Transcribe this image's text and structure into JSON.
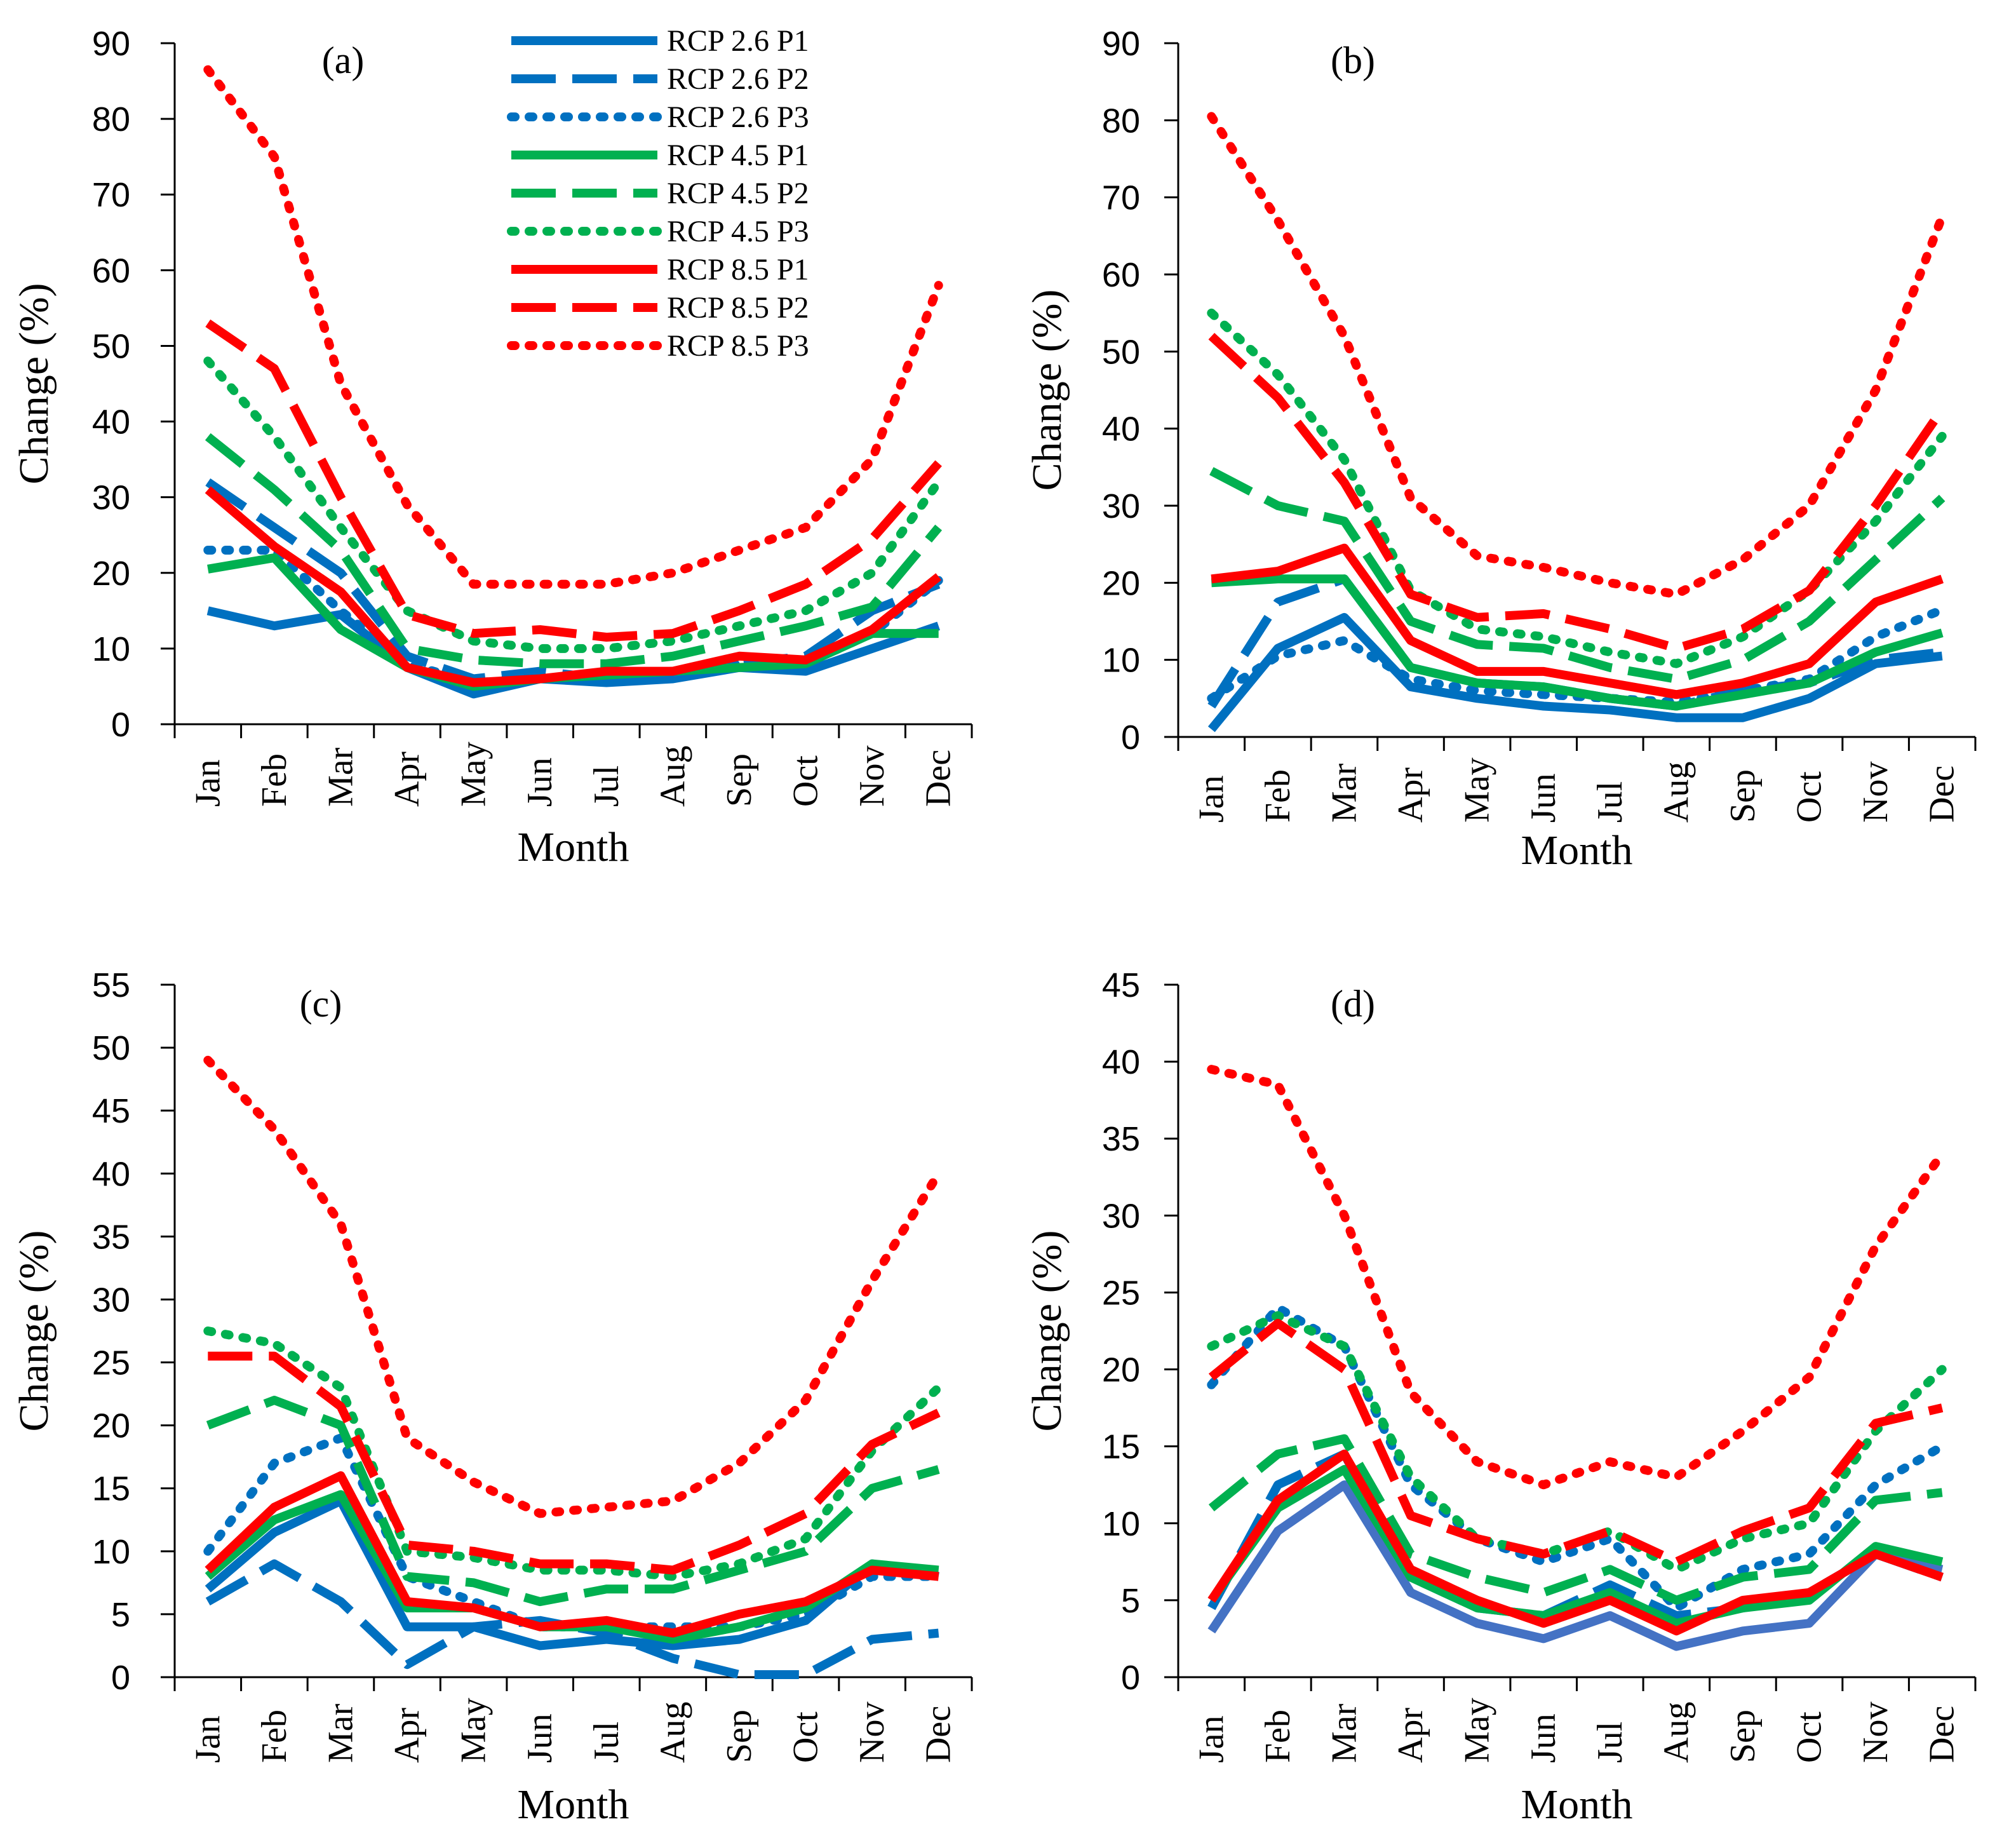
{
  "chart_data": [
    {
      "type": "line",
      "panel": "(a)",
      "xlabel": "Month",
      "ylabel": "Change (%)",
      "categories": [
        "Jan",
        "Feb",
        "Mar",
        "Apr",
        "May",
        "Jun",
        "Jul",
        "Aug",
        "Sep",
        "Oct",
        "Nov",
        "Dec"
      ],
      "ylim": [
        0,
        90
      ],
      "yticks": [
        0,
        10,
        20,
        30,
        40,
        50,
        60,
        70,
        80,
        90
      ],
      "legend": {
        "entries": [
          "RCP 2.6 P1",
          "RCP 2.6 P2",
          "RCP 2.6 P3",
          "RCP 4.5 P1",
          "RCP 4.5 P2",
          "RCP 4.5 P3",
          "RCP 8.5 P1",
          "RCP 8.5 P2",
          "RCP 8.5 P3"
        ],
        "placement": "top-center"
      },
      "series": [
        {
          "name": "RCP 2.6 P1",
          "color": "#0070c0",
          "style": "solid",
          "values": [
            15,
            13,
            14.5,
            7.5,
            4,
            6,
            5.5,
            6,
            7.5,
            7,
            10,
            13
          ]
        },
        {
          "name": "RCP 2.6 P2",
          "color": "#0070c0",
          "style": "dashed",
          "values": [
            32,
            26,
            20,
            9,
            6,
            7,
            6,
            6.5,
            8,
            9,
            15,
            18.5
          ]
        },
        {
          "name": "RCP 2.6 P3",
          "color": "#0070c0",
          "style": "dotted",
          "values": [
            23,
            23,
            15,
            8,
            5.5,
            6,
            6,
            7,
            8,
            8,
            12,
            19
          ]
        },
        {
          "name": "RCP 4.5 P1",
          "color": "#00b050",
          "style": "solid",
          "values": [
            20.5,
            22,
            12.5,
            7.5,
            5,
            6,
            6.5,
            7,
            7.5,
            8,
            12,
            12
          ]
        },
        {
          "name": "RCP 4.5 P2",
          "color": "#00b050",
          "style": "dashed",
          "values": [
            38,
            31,
            23,
            10,
            8.5,
            8,
            8,
            9,
            11,
            13,
            15.5,
            26
          ]
        },
        {
          "name": "RCP 4.5 P3",
          "color": "#00b050",
          "style": "dotted",
          "values": [
            48,
            38,
            26,
            15,
            11,
            10,
            10,
            11,
            13,
            15,
            20,
            32
          ]
        },
        {
          "name": "RCP 8.5 P1",
          "color": "#ff0000",
          "style": "solid",
          "values": [
            31,
            23.5,
            17.5,
            7.5,
            5.5,
            6,
            7,
            7,
            9,
            8.5,
            12.5,
            19.5
          ]
        },
        {
          "name": "RCP 8.5 P2",
          "color": "#ff0000",
          "style": "dashed",
          "values": [
            53,
            47,
            30,
            14.5,
            12,
            12.5,
            11.5,
            12,
            15,
            18.5,
            24.5,
            34.5
          ]
        },
        {
          "name": "RCP 8.5 P3",
          "color": "#ff0000",
          "style": "dotted",
          "values": [
            86.5,
            75,
            45,
            29,
            18.5,
            18.5,
            18.5,
            20,
            23,
            26,
            35,
            58
          ]
        }
      ]
    },
    {
      "type": "line",
      "panel": "(b)",
      "xlabel": "Month",
      "ylabel": "Change (%)",
      "categories": [
        "Jan",
        "Feb",
        "Mar",
        "Apr",
        "May",
        "Jun",
        "Jul",
        "Aug",
        "Sep",
        "Oct",
        "Nov",
        "Dec"
      ],
      "ylim": [
        0,
        90
      ],
      "yticks": [
        0,
        10,
        20,
        30,
        40,
        50,
        60,
        70,
        80,
        90
      ],
      "series": [
        {
          "name": "RCP 2.6 P1",
          "color": "#0070c0",
          "style": "solid",
          "values": [
            1,
            11.5,
            15.5,
            6.5,
            5,
            4,
            3.5,
            2.5,
            2.5,
            5,
            9.5,
            10.5
          ]
        },
        {
          "name": "RCP 2.6 P2",
          "color": "#0070c0",
          "style": "dashed",
          "values": [
            4,
            17.5,
            20.5,
            9,
            7,
            6.5,
            5,
            4,
            6,
            7,
            10,
            11
          ]
        },
        {
          "name": "RCP 2.6 P3",
          "color": "#0070c0",
          "style": "dotted",
          "values": [
            5,
            10.5,
            12.5,
            7.5,
            6,
            5.5,
            5,
            4.5,
            6,
            7.5,
            13,
            16.5
          ]
        },
        {
          "name": "RCP 4.5 P1",
          "color": "#00b050",
          "style": "solid",
          "values": [
            20,
            20.5,
            20.5,
            9,
            7,
            6.5,
            5,
            4,
            5.5,
            7,
            11,
            13.5
          ]
        },
        {
          "name": "RCP 4.5 P2",
          "color": "#00b050",
          "style": "dashed",
          "values": [
            34.5,
            30,
            28,
            15,
            12,
            11.5,
            9,
            7.5,
            10,
            15,
            23,
            31
          ]
        },
        {
          "name": "RCP 4.5 P3",
          "color": "#00b050",
          "style": "dotted",
          "values": [
            55,
            47,
            36,
            19,
            14,
            13,
            11,
            9.5,
            13,
            19,
            28,
            39
          ]
        },
        {
          "name": "RCP 8.5 P1",
          "color": "#ff0000",
          "style": "solid",
          "values": [
            20.5,
            21.5,
            24.5,
            12.5,
            8.5,
            8.5,
            7,
            5.5,
            7,
            9.5,
            17.5,
            20.5
          ]
        },
        {
          "name": "RCP 8.5 P2",
          "color": "#ff0000",
          "style": "dashed",
          "values": [
            52,
            44,
            33,
            18.5,
            15.5,
            16,
            14,
            11.5,
            14,
            19,
            30,
            42.5
          ]
        },
        {
          "name": "RCP 8.5 P3",
          "color": "#ff0000",
          "style": "dotted",
          "values": [
            80.5,
            67,
            52,
            31,
            23.5,
            22,
            20,
            18.5,
            23,
            30,
            45,
            67.5
          ]
        }
      ]
    },
    {
      "type": "line",
      "panel": "(c)",
      "xlabel": "Month",
      "ylabel": "Change (%)",
      "categories": [
        "Jan",
        "Feb",
        "Mar",
        "Apr",
        "May",
        "Jun",
        "Jul",
        "Aug",
        "Sep",
        "Oct",
        "Nov",
        "Dec"
      ],
      "ylim": [
        0,
        55
      ],
      "yticks": [
        0,
        5,
        10,
        15,
        20,
        25,
        30,
        35,
        40,
        45,
        50,
        55
      ],
      "series": [
        {
          "name": "RCP 2.6 P1",
          "color": "#0070c0",
          "style": "solid",
          "values": [
            7,
            11.5,
            14,
            4,
            4,
            2.5,
            3,
            2.5,
            3,
            4.5,
            9,
            8
          ]
        },
        {
          "name": "RCP 2.6 P2",
          "color": "#0070c0",
          "style": "dashed",
          "values": [
            6,
            9,
            6,
            1,
            4,
            4.5,
            3.5,
            1.5,
            0.2,
            0.2,
            3,
            3.5
          ]
        },
        {
          "name": "RCP 2.6 P3",
          "color": "#0070c0",
          "style": "dotted",
          "values": [
            10,
            17,
            19,
            8,
            6,
            4,
            4,
            4,
            4,
            5,
            8,
            8
          ]
        },
        {
          "name": "RCP 4.5 P1",
          "color": "#00b050",
          "style": "solid",
          "values": [
            8,
            12.5,
            14.5,
            5.5,
            5.5,
            4,
            4,
            3,
            4,
            5.5,
            9,
            8.5
          ]
        },
        {
          "name": "RCP 4.5 P2",
          "color": "#00b050",
          "style": "dashed",
          "values": [
            20,
            22,
            20,
            8,
            7.5,
            6,
            7,
            7,
            8.5,
            10,
            15,
            16.5
          ]
        },
        {
          "name": "RCP 4.5 P3",
          "color": "#00b050",
          "style": "dotted",
          "values": [
            27.5,
            26.5,
            23,
            10,
            9.5,
            8.5,
            8.5,
            8,
            9,
            11,
            18,
            23
          ]
        },
        {
          "name": "RCP 8.5 P1",
          "color": "#ff0000",
          "style": "solid",
          "values": [
            8.5,
            13.5,
            16,
            6,
            5.5,
            4,
            4.5,
            3.5,
            5,
            6,
            8.5,
            8
          ]
        },
        {
          "name": "RCP 8.5 P2",
          "color": "#ff0000",
          "style": "dashed",
          "values": [
            25.5,
            25.5,
            21.5,
            10.5,
            10,
            9,
            9,
            8.5,
            10.5,
            13,
            18.5,
            21
          ]
        },
        {
          "name": "RCP 8.5 P3",
          "color": "#ff0000",
          "style": "dotted",
          "values": [
            49,
            43.5,
            36,
            19,
            15.5,
            13,
            13.5,
            14,
            17,
            22,
            31.5,
            40
          ]
        }
      ]
    },
    {
      "type": "line",
      "panel": "(d)",
      "xlabel": "Month",
      "ylabel": "Change (%)",
      "categories": [
        "Jan",
        "Feb",
        "Mar",
        "Apr",
        "May",
        "Jun",
        "Jul",
        "Aug",
        "Sep",
        "Oct",
        "Nov",
        "Dec"
      ],
      "ylim": [
        0,
        45
      ],
      "yticks": [
        0,
        5,
        10,
        15,
        20,
        25,
        30,
        35,
        40,
        45
      ],
      "series": [
        {
          "name": "RCP 2.6 P1",
          "color": "#4472c4",
          "style": "solid",
          "values": [
            3,
            9.5,
            12.5,
            5.5,
            3.5,
            2.5,
            4,
            2,
            3,
            3.5,
            8,
            7
          ]
        },
        {
          "name": "RCP 2.6 P2",
          "color": "#0070c0",
          "style": "dashed",
          "values": [
            4.5,
            12.5,
            14.5,
            6.5,
            4.5,
            4,
            6,
            4,
            4.5,
            5.5,
            8,
            6.5
          ]
        },
        {
          "name": "RCP 2.6 P3",
          "color": "#0070c0",
          "style": "dotted",
          "values": [
            19,
            24,
            21.5,
            12.5,
            9,
            7.5,
            9,
            4.5,
            7,
            8,
            12.5,
            15
          ]
        },
        {
          "name": "RCP 4.5 P1",
          "color": "#00b050",
          "style": "solid",
          "values": [
            5,
            11,
            13.5,
            6.5,
            4.5,
            4,
            5.5,
            3.5,
            4.5,
            5,
            8.5,
            7.5
          ]
        },
        {
          "name": "RCP 4.5 P2",
          "color": "#00b050",
          "style": "dashed",
          "values": [
            11,
            14.5,
            15.5,
            8,
            6.5,
            5.5,
            7,
            5,
            6.5,
            7,
            11.5,
            12
          ]
        },
        {
          "name": "RCP 4.5 P3",
          "color": "#00b050",
          "style": "dotted",
          "values": [
            21.5,
            23.5,
            21.5,
            13,
            9,
            8,
            9.5,
            7,
            9,
            10,
            16,
            20
          ]
        },
        {
          "name": "RCP 8.5 P1",
          "color": "#ff0000",
          "style": "solid",
          "values": [
            5,
            11.5,
            14.5,
            7,
            5,
            3.5,
            5,
            3,
            5,
            5.5,
            8,
            6.5
          ]
        },
        {
          "name": "RCP 8.5 P2",
          "color": "#ff0000",
          "style": "dashed",
          "values": [
            19.5,
            23,
            20,
            10.5,
            9,
            8,
            9.5,
            7.5,
            9.5,
            11,
            16.5,
            17.5
          ]
        },
        {
          "name": "RCP 8.5 P3",
          "color": "#ff0000",
          "style": "dotted",
          "values": [
            39.5,
            38.5,
            30,
            18.5,
            14,
            12.5,
            14,
            13,
            16,
            19.5,
            28,
            34
          ]
        }
      ]
    }
  ]
}
